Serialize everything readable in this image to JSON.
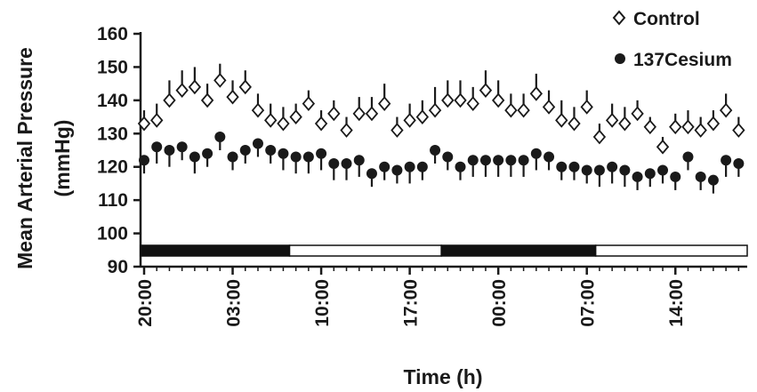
{
  "chart_data": {
    "type": "scatter",
    "xlabel": "Time (h)",
    "ylabel_line1": "Mean Arterial Pressure",
    "ylabel_line2": "(mmHg)",
    "ylim": [
      90,
      160
    ],
    "yticks": [
      90,
      100,
      110,
      120,
      130,
      140,
      150,
      160
    ],
    "x_unit": "hours from 20:00",
    "xlim": [
      0,
      47.5
    ],
    "xticks": [
      0,
      7,
      14,
      21,
      28,
      35,
      42
    ],
    "xtick_labels": [
      "20:00",
      "03:00",
      "10:00",
      "17:00",
      "00:00",
      "07:00",
      "14:00"
    ],
    "light_dark_bar": [
      {
        "phase": "dark",
        "start": 0,
        "end": 11.5
      },
      {
        "phase": "light",
        "start": 11.5,
        "end": 23.5
      },
      {
        "phase": "dark",
        "start": 23.5,
        "end": 35.7
      },
      {
        "phase": "light",
        "start": 35.7,
        "end": 47.5
      }
    ],
    "legend_position": "top-right",
    "series": [
      {
        "name": "Control",
        "marker": "open-diamond",
        "color": "#1a1a1a",
        "x": [
          0,
          1,
          2,
          3,
          4,
          5,
          6,
          7,
          8,
          9,
          10,
          11,
          12,
          13,
          14,
          15,
          16,
          17,
          18,
          19,
          20,
          21,
          22,
          23,
          24,
          25,
          26,
          27,
          28,
          29,
          30,
          31,
          32,
          33,
          34,
          35,
          36,
          37,
          38,
          39,
          40,
          41,
          42,
          43,
          44,
          45,
          46,
          47
        ],
        "y": [
          133,
          134,
          140,
          143,
          144,
          140,
          146,
          141,
          144,
          137,
          134,
          133,
          135,
          139,
          133,
          136,
          131,
          136,
          136,
          139,
          131,
          134,
          135,
          137,
          140,
          140,
          139,
          143,
          140,
          137,
          137,
          142,
          138,
          134,
          133,
          138,
          129,
          134,
          133,
          136,
          132,
          126,
          132,
          132,
          131,
          133,
          137,
          131
        ],
        "err": [
          4,
          5,
          6,
          6,
          6,
          5,
          5,
          5,
          5,
          5,
          5,
          5,
          4,
          4,
          4,
          4,
          4,
          5,
          5,
          6,
          4,
          5,
          5,
          7,
          6,
          6,
          5,
          6,
          6,
          5,
          5,
          6,
          5,
          6,
          5,
          5,
          4,
          5,
          5,
          4,
          3,
          3,
          4,
          5,
          4,
          4,
          5,
          4
        ]
      },
      {
        "name": "137Cesium",
        "marker": "filled-circle",
        "color": "#1a1a1a",
        "x": [
          0,
          1,
          2,
          3,
          4,
          5,
          6,
          7,
          8,
          9,
          10,
          11,
          12,
          13,
          14,
          15,
          16,
          17,
          18,
          19,
          20,
          21,
          22,
          23,
          24,
          25,
          26,
          27,
          28,
          29,
          30,
          31,
          32,
          33,
          34,
          35,
          36,
          37,
          38,
          39,
          40,
          41,
          42,
          43,
          44,
          45,
          46,
          47
        ],
        "y": [
          122,
          126,
          125,
          126,
          123,
          124,
          129,
          123,
          125,
          127,
          125,
          124,
          123,
          123,
          124,
          121,
          121,
          122,
          118,
          120,
          119,
          120,
          120,
          125,
          123,
          120,
          122,
          122,
          122,
          122,
          122,
          124,
          123,
          120,
          120,
          119,
          119,
          120,
          119,
          117,
          118,
          119,
          117,
          123,
          117,
          116,
          122,
          121
        ],
        "err": [
          4,
          5,
          5,
          4,
          5,
          4,
          4,
          4,
          4,
          4,
          4,
          5,
          5,
          5,
          5,
          5,
          5,
          5,
          4,
          4,
          4,
          5,
          4,
          4,
          4,
          4,
          5,
          5,
          5,
          5,
          5,
          5,
          4,
          4,
          4,
          4,
          5,
          5,
          5,
          4,
          4,
          4,
          4,
          4,
          4,
          4,
          5,
          4
        ]
      }
    ]
  }
}
